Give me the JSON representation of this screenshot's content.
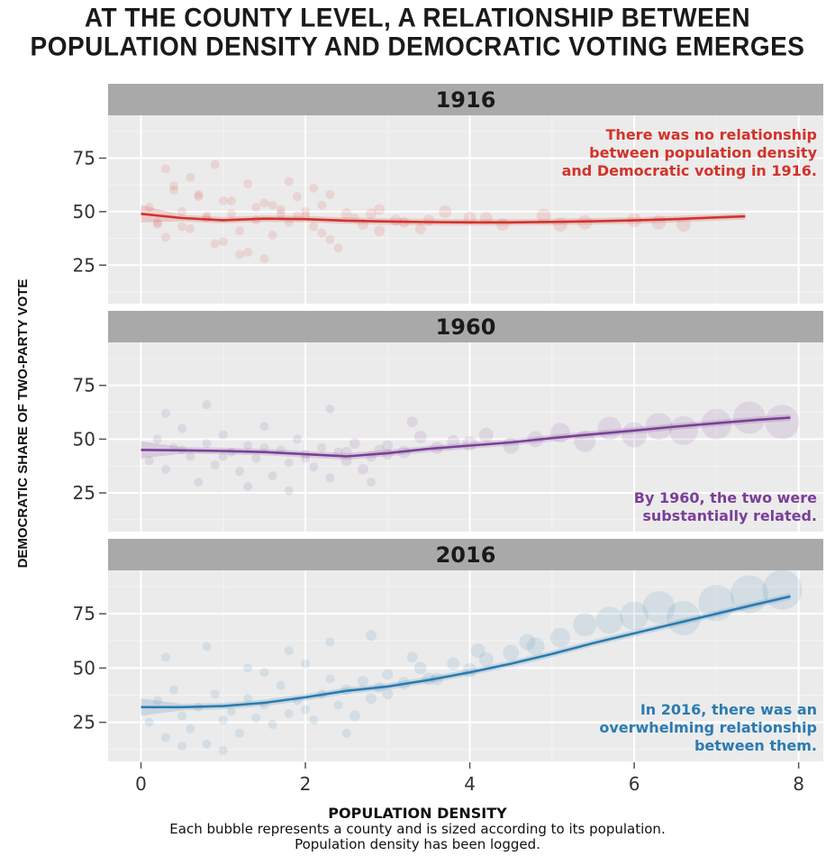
{
  "title_lines": [
    "AT THE COUNTY LEVEL, A RELATIONSHIP BETWEEN",
    "POPULATION DENSITY AND DEMOCRATIC VOTING EMERGES"
  ],
  "xlabel": "POPULATION DENSITY",
  "ylabel": "DEMOCRATIC SHARE OF TWO-PARTY VOTE",
  "caption_lines": [
    "Each bubble represents a county and is sized according to its population.",
    "Population density has been logged."
  ],
  "colors": {
    "panel_bg": "#ebebeb",
    "strip_bg": "#a9a9a9",
    "grid": "#ffffff",
    "red": "#d2332a",
    "purple": "#7b3f98",
    "blue": "#2b7bb0"
  },
  "chart_data": {
    "type": "scatter",
    "x_ticks": [
      "0",
      "2",
      "4",
      "6",
      "8"
    ],
    "y_ticks": [
      "25",
      "50",
      "75"
    ],
    "xlim": [
      -0.4,
      8.3
    ],
    "ylim": [
      7,
      95
    ],
    "grid": true,
    "panels": [
      {
        "title": "1916",
        "color": "#d2332a",
        "annotation": [
          "There was no relationship",
          "between population density",
          "and Democratic voting in 1916."
        ],
        "annotation_position": "top-right",
        "trend_x": [
          0,
          0.5,
          1,
          1.5,
          2,
          2.5,
          3,
          3.5,
          4,
          4.5,
          5,
          5.5,
          6,
          6.5,
          7,
          7.35
        ],
        "trend_y": [
          49,
          47,
          46,
          46.7,
          46.5,
          45.8,
          45.4,
          45.1,
          45,
          45,
          45.2,
          45.5,
          45.9,
          46.5,
          47.3,
          47.8
        ],
        "points_x": [
          0.1,
          0.2,
          0.3,
          0.4,
          0.5,
          0.6,
          0.7,
          0.8,
          0.9,
          1,
          1.1,
          1.2,
          1.3,
          1.4,
          1.5,
          1.6,
          1.7,
          1.8,
          1.9,
          2,
          2.1,
          2.2,
          2.3,
          2.5,
          2.7,
          2.9,
          3.1,
          3.4,
          3.7,
          4,
          4.4,
          4.9,
          5.4,
          6,
          6.6,
          0.3,
          0.6,
          0.9,
          1.2,
          1.5,
          1.8,
          2.1,
          2.4,
          0.2,
          0.8,
          1.4,
          2,
          2.6,
          3.2,
          0.5,
          1.1,
          1.7,
          2.3,
          2.9,
          3.5,
          4.2,
          5.1,
          6.3,
          0.4,
          1,
          1.6,
          2.2,
          2.8,
          0.7,
          1.3,
          1.9
        ],
        "points_y": [
          52,
          44,
          38,
          60,
          50,
          42,
          58,
          47,
          35,
          55,
          49,
          41,
          63,
          46,
          54,
          39,
          51,
          45,
          57,
          48,
          43,
          53,
          37,
          49,
          44,
          51,
          46,
          42,
          50,
          47,
          44,
          48,
          45,
          46,
          44,
          70,
          66,
          72,
          30,
          28,
          64,
          61,
          33,
          45,
          48,
          52,
          50,
          47,
          45,
          43,
          55,
          49,
          58,
          41,
          46,
          47,
          44,
          45,
          62,
          36,
          53,
          40,
          49,
          57,
          31,
          48
        ],
        "points_r": [
          5,
          5,
          5,
          5,
          5,
          5,
          5,
          5,
          5,
          5,
          5,
          5,
          5,
          5,
          5,
          5,
          5,
          5,
          5,
          5,
          5,
          5,
          5,
          6,
          6,
          6,
          6,
          6,
          7,
          7,
          7,
          8,
          8,
          8,
          8,
          5,
          5,
          5,
          5,
          5,
          5,
          5,
          5,
          5,
          5,
          5,
          5,
          5,
          6,
          5,
          5,
          5,
          5,
          6,
          6,
          7,
          8,
          8,
          5,
          5,
          5,
          5,
          6,
          5,
          5,
          5
        ]
      },
      {
        "title": "1960",
        "color": "#7b3f98",
        "annotation": [
          "By 1960, the two were",
          "substantially related."
        ],
        "annotation_position": "bottom-right",
        "trend_x": [
          0,
          0.5,
          1,
          1.5,
          2,
          2.5,
          3,
          3.5,
          4,
          4.5,
          5,
          5.5,
          6,
          6.5,
          7,
          7.5,
          7.9
        ],
        "trend_y": [
          45,
          44.8,
          44.5,
          44,
          43,
          42,
          43.5,
          45.5,
          47,
          48.5,
          50.5,
          52.3,
          54,
          55.8,
          57.4,
          59,
          60
        ],
        "points_x": [
          0.1,
          0.2,
          0.3,
          0.4,
          0.5,
          0.6,
          0.7,
          0.8,
          0.9,
          1,
          1.1,
          1.2,
          1.3,
          1.4,
          1.5,
          1.6,
          1.7,
          1.8,
          1.9,
          2,
          2.1,
          2.2,
          2.3,
          2.4,
          2.5,
          2.6,
          2.7,
          2.8,
          2.9,
          3,
          3.2,
          3.4,
          3.6,
          3.8,
          4,
          4.2,
          4.5,
          4.8,
          5.1,
          5.4,
          5.7,
          6,
          6.3,
          6.6,
          7,
          7.4,
          7.8,
          0.3,
          0.8,
          1.3,
          1.8,
          2.3,
          2.8,
          3.3,
          0.5,
          1,
          1.5,
          2,
          2.5,
          3
        ],
        "points_y": [
          40,
          50,
          36,
          46,
          55,
          42,
          30,
          48,
          38,
          52,
          44,
          35,
          47,
          41,
          56,
          33,
          45,
          39,
          50,
          43,
          37,
          46,
          32,
          44,
          40,
          48,
          36,
          42,
          45,
          47,
          44,
          51,
          46,
          49,
          48,
          52,
          47,
          50,
          53,
          49,
          55,
          52,
          56,
          54,
          57,
          60,
          58,
          62,
          66,
          28,
          26,
          64,
          30,
          58,
          45,
          42,
          46,
          41,
          44,
          43
        ],
        "points_r": [
          5,
          5,
          5,
          5,
          5,
          5,
          5,
          5,
          5,
          5,
          5,
          5,
          5,
          5,
          5,
          5,
          5,
          5,
          5,
          5,
          5,
          5,
          5,
          5,
          6,
          6,
          6,
          6,
          6,
          6,
          7,
          7,
          7,
          7,
          8,
          8,
          9,
          9,
          11,
          12,
          13,
          14,
          15,
          16,
          17,
          18,
          19,
          5,
          5,
          5,
          5,
          5,
          5,
          6,
          5,
          5,
          5,
          5,
          6,
          6
        ]
      },
      {
        "title": "2016",
        "color": "#2b7bb0",
        "annotation": [
          "In 2016, there was an",
          "overwhelming relationship",
          "between them."
        ],
        "annotation_position": "bottom-right",
        "trend_x": [
          0,
          0.5,
          1,
          1.5,
          2,
          2.5,
          3,
          3.5,
          4,
          4.5,
          5,
          5.5,
          6,
          6.5,
          7,
          7.5,
          7.9
        ],
        "trend_y": [
          32,
          32,
          32.5,
          34,
          36.5,
          39.5,
          41.5,
          44.5,
          48,
          52,
          56.5,
          61.5,
          66,
          70.5,
          75,
          79.5,
          83
        ],
        "points_x": [
          0.1,
          0.2,
          0.3,
          0.4,
          0.5,
          0.6,
          0.7,
          0.8,
          0.9,
          1,
          1.1,
          1.2,
          1.3,
          1.4,
          1.5,
          1.6,
          1.7,
          1.8,
          1.9,
          2,
          2.1,
          2.2,
          2.3,
          2.4,
          2.5,
          2.6,
          2.7,
          2.8,
          2.9,
          3,
          3.2,
          3.4,
          3.6,
          3.8,
          4,
          4.2,
          4.5,
          4.8,
          5.1,
          5.4,
          5.7,
          6,
          6.3,
          6.6,
          7,
          7.4,
          7.8,
          0.3,
          0.8,
          1.3,
          1.8,
          2.3,
          2.8,
          3.3,
          0.5,
          1,
          1.5,
          2,
          2.5,
          3,
          3.5,
          4.1,
          4.7
        ],
        "points_y": [
          25,
          35,
          18,
          40,
          28,
          22,
          32,
          15,
          38,
          26,
          30,
          20,
          36,
          27,
          33,
          24,
          42,
          29,
          35,
          31,
          26,
          38,
          45,
          33,
          40,
          28,
          44,
          36,
          41,
          47,
          43,
          50,
          45,
          52,
          49,
          54,
          57,
          60,
          64,
          70,
          72,
          74,
          78,
          73,
          80,
          84,
          86,
          55,
          60,
          50,
          58,
          62,
          65,
          55,
          14,
          12,
          48,
          52,
          20,
          38,
          45,
          58,
          62
        ],
        "points_r": [
          5,
          5,
          5,
          5,
          5,
          5,
          5,
          5,
          5,
          5,
          5,
          5,
          5,
          5,
          5,
          5,
          5,
          5,
          5,
          5,
          5,
          5,
          5,
          5,
          6,
          6,
          6,
          6,
          6,
          6,
          7,
          7,
          7,
          7,
          8,
          8,
          9,
          10,
          11,
          13,
          15,
          16,
          18,
          19,
          20,
          21,
          22,
          5,
          5,
          5,
          5,
          5,
          6,
          6,
          5,
          5,
          5,
          5,
          5,
          6,
          7,
          8,
          9
        ]
      }
    ]
  }
}
